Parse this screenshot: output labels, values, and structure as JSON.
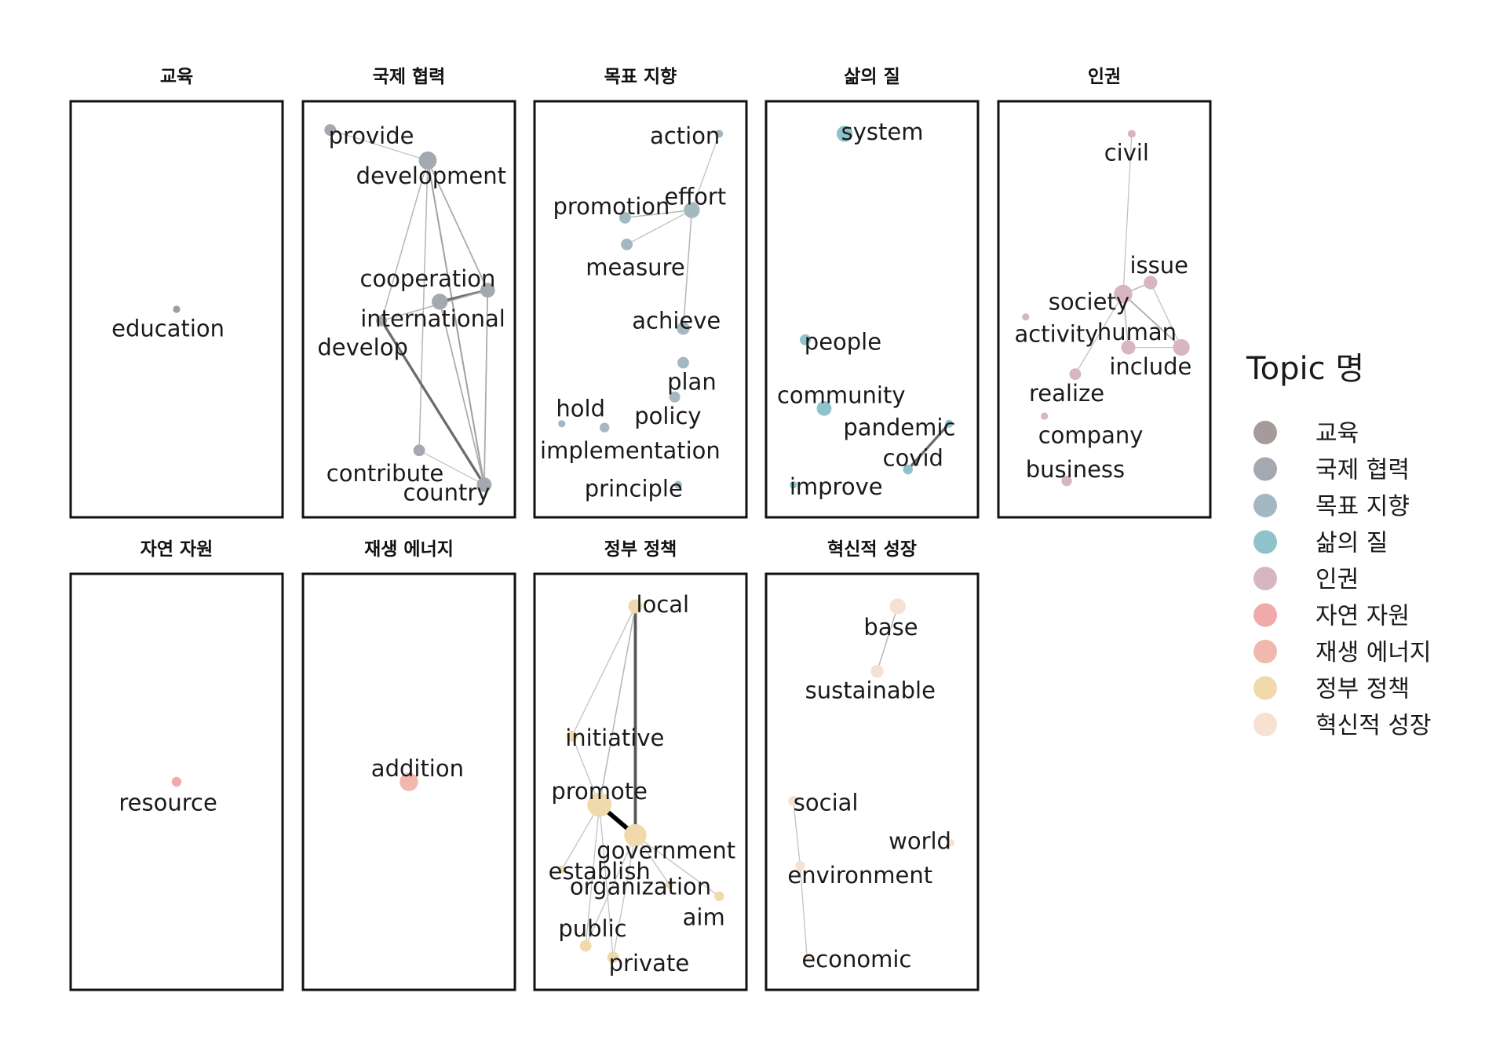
{
  "chart_data": {
    "type": "network",
    "x_range": [
      0,
      1
    ],
    "y_range": [
      0,
      1
    ],
    "legend": {
      "title": "Topic 명",
      "position": "right",
      "entries": [
        {
          "label": "교육",
          "color": "#a49b9a"
        },
        {
          "label": "국제 협력",
          "color": "#a4a8b0"
        },
        {
          "label": "목표 지향",
          "color": "#a4b8c2"
        },
        {
          "label": "삶의 질",
          "color": "#8ec3cb"
        },
        {
          "label": "인권",
          "color": "#d7b6c0"
        },
        {
          "label": "자연 자원",
          "color": "#f0aaaa"
        },
        {
          "label": "재생 에너지",
          "color": "#f1b8ae"
        },
        {
          "label": "정부 정책",
          "color": "#f0d9ab"
        },
        {
          "label": "혁신적 성장",
          "color": "#f6e1d3"
        }
      ]
    },
    "panels": [
      {
        "title": "교육",
        "color": "#a49b9a",
        "nodes": [
          {
            "word": "education",
            "x": 0.5,
            "y": 0.5,
            "size": 0.6,
            "label_at": [
              0.45,
              0.45
            ]
          }
        ],
        "edges": []
      },
      {
        "title": "국제 협력",
        "color": "#a4a8b0",
        "nodes": [
          {
            "word": "provide",
            "x": 0.04,
            "y": 0.97,
            "size": 1.3,
            "label_at": [
              0.28,
              0.955
            ]
          },
          {
            "word": "development",
            "x": 0.61,
            "y": 0.89,
            "size": 2.3,
            "label_at": [
              0.63,
              0.85
            ]
          },
          {
            "word": "cooperation",
            "x": 0.68,
            "y": 0.52,
            "size": 2.0,
            "label_at": [
              0.61,
              0.58
            ]
          },
          {
            "word": "international",
            "x": 0.96,
            "y": 0.55,
            "size": 1.8,
            "label_at": [
              0.64,
              0.475
            ]
          },
          {
            "word": "develop",
            "x": 0.34,
            "y": 0.47,
            "size": 1.2,
            "label_at": [
              0.23,
              0.4
            ]
          },
          {
            "word": "contribute",
            "x": 0.56,
            "y": 0.13,
            "size": 1.3,
            "label_at": [
              0.36,
              0.07
            ]
          },
          {
            "word": "country",
            "x": 0.94,
            "y": 0.04,
            "size": 1.8,
            "label_at": [
              0.72,
              0.02
            ]
          }
        ],
        "edges": [
          {
            "source": "development",
            "target": "country",
            "weight": 0.25
          },
          {
            "source": "development",
            "target": "international",
            "weight": 0.2
          },
          {
            "source": "development",
            "target": "contribute",
            "weight": 0.15
          },
          {
            "source": "development",
            "target": "develop",
            "weight": 0.15
          },
          {
            "source": "development",
            "target": "provide",
            "weight": 0.1
          },
          {
            "source": "cooperation",
            "target": "international",
            "weight": 0.5
          },
          {
            "source": "cooperation",
            "target": "country",
            "weight": 0.2
          },
          {
            "source": "international",
            "target": "country",
            "weight": 0.2
          },
          {
            "source": "international",
            "target": "develop",
            "weight": 0.15
          },
          {
            "source": "develop",
            "target": "country",
            "weight": 0.5
          },
          {
            "source": "contribute",
            "target": "country",
            "weight": 0.1
          }
        ]
      },
      {
        "title": "목표 지향",
        "color": "#a4b8c2",
        "nodes": [
          {
            "word": "action",
            "x": 0.96,
            "y": 0.96,
            "size": 0.7,
            "label_at": [
              0.76,
              0.955
            ]
          },
          {
            "word": "effort",
            "x": 0.8,
            "y": 0.76,
            "size": 2.0,
            "label_at": [
              0.82,
              0.795
            ]
          },
          {
            "word": "promotion",
            "x": 0.41,
            "y": 0.74,
            "size": 1.3,
            "label_at": [
              0.33,
              0.77
            ]
          },
          {
            "word": "measure",
            "x": 0.42,
            "y": 0.67,
            "size": 1.3,
            "label_at": [
              0.47,
              0.61
            ]
          },
          {
            "word": "achieve",
            "x": 0.75,
            "y": 0.45,
            "size": 1.5,
            "label_at": [
              0.71,
              0.47
            ]
          },
          {
            "word": "plan",
            "x": 0.75,
            "y": 0.36,
            "size": 1.3,
            "label_at": [
              0.8,
              0.31
            ]
          },
          {
            "word": "policy",
            "x": 0.7,
            "y": 0.27,
            "size": 1.2,
            "label_at": [
              0.66,
              0.22
            ]
          },
          {
            "word": "hold",
            "x": 0.04,
            "y": 0.2,
            "size": 0.6,
            "label_at": [
              0.15,
              0.24
            ]
          },
          {
            "word": "implementation",
            "x": 0.29,
            "y": 0.19,
            "size": 1.0,
            "label_at": [
              0.44,
              0.13
            ]
          },
          {
            "word": "principle",
            "x": 0.72,
            "y": 0.04,
            "size": 0.7,
            "label_at": [
              0.46,
              0.03
            ]
          }
        ],
        "edges": [
          {
            "source": "action",
            "target": "effort",
            "weight": 0.1
          },
          {
            "source": "effort",
            "target": "promotion",
            "weight": 0.15
          },
          {
            "source": "effort",
            "target": "measure",
            "weight": 0.1
          },
          {
            "source": "effort",
            "target": "achieve",
            "weight": 0.15
          }
        ]
      },
      {
        "title": "삶의 질",
        "color": "#8ec3cb",
        "nodes": [
          {
            "word": "system",
            "x": 0.34,
            "y": 0.96,
            "size": 2.0,
            "label_at": [
              0.56,
              0.965
            ]
          },
          {
            "word": "people",
            "x": 0.11,
            "y": 0.42,
            "size": 1.2,
            "label_at": [
              0.33,
              0.415
            ]
          },
          {
            "word": "community",
            "x": 0.22,
            "y": 0.24,
            "size": 1.8,
            "label_at": [
              0.32,
              0.275
            ]
          },
          {
            "word": "pandemic",
            "x": 0.95,
            "y": 0.2,
            "size": 0.7,
            "label_at": [
              0.66,
              0.19
            ]
          },
          {
            "word": "covid",
            "x": 0.71,
            "y": 0.08,
            "size": 1.0,
            "label_at": [
              0.74,
              0.11
            ]
          },
          {
            "word": "improve",
            "x": 0.04,
            "y": 0.04,
            "size": 0.6,
            "label_at": [
              0.29,
              0.035
            ]
          }
        ],
        "edges": [
          {
            "source": "pandemic",
            "target": "covid",
            "weight": 0.5
          }
        ]
      },
      {
        "title": "인권",
        "color": "#d7b6c0",
        "nodes": [
          {
            "word": "civil",
            "x": 0.66,
            "y": 0.96,
            "size": 0.7,
            "label_at": [
              0.63,
              0.91
            ]
          },
          {
            "word": "issue",
            "x": 0.77,
            "y": 0.57,
            "size": 1.6,
            "label_at": [
              0.82,
              0.615
            ]
          },
          {
            "word": "society",
            "x": 0.61,
            "y": 0.54,
            "size": 2.4,
            "label_at": [
              0.41,
              0.52
            ]
          },
          {
            "word": "activity",
            "x": 0.04,
            "y": 0.48,
            "size": 0.6,
            "label_at": [
              0.22,
              0.435
            ]
          },
          {
            "word": "human",
            "x": 0.64,
            "y": 0.4,
            "size": 1.7,
            "label_at": [
              0.69,
              0.44
            ]
          },
          {
            "word": "include",
            "x": 0.95,
            "y": 0.4,
            "size": 2.1,
            "label_at": [
              0.77,
              0.35
            ]
          },
          {
            "word": "realize",
            "x": 0.33,
            "y": 0.33,
            "size": 1.3,
            "label_at": [
              0.28,
              0.28
            ]
          },
          {
            "word": "company",
            "x": 0.15,
            "y": 0.22,
            "size": 0.6,
            "label_at": [
              0.42,
              0.17
            ]
          },
          {
            "word": "business",
            "x": 0.28,
            "y": 0.05,
            "size": 1.1,
            "label_at": [
              0.33,
              0.08
            ]
          }
        ],
        "edges": [
          {
            "source": "civil",
            "target": "society",
            "weight": 0.1
          },
          {
            "source": "society",
            "target": "issue",
            "weight": 0.15
          },
          {
            "source": "society",
            "target": "include",
            "weight": 0.2
          },
          {
            "source": "society",
            "target": "human",
            "weight": 0.15
          },
          {
            "source": "society",
            "target": "realize",
            "weight": 0.1
          },
          {
            "source": "issue",
            "target": "include",
            "weight": 0.1
          },
          {
            "source": "human",
            "target": "include",
            "weight": 0.1
          }
        ]
      },
      {
        "title": "자연 자원",
        "color": "#f0aaaa",
        "nodes": [
          {
            "word": "resource",
            "x": 0.5,
            "y": 0.5,
            "size": 1.0,
            "label_at": [
              0.45,
              0.445
            ]
          }
        ],
        "edges": []
      },
      {
        "title": "재생 에너지",
        "color": "#f1b8ae",
        "nodes": [
          {
            "word": "addition",
            "x": 0.5,
            "y": 0.5,
            "size": 2.4,
            "label_at": [
              0.55,
              0.535
            ]
          }
        ],
        "edges": []
      },
      {
        "title": "정부 정책",
        "color": "#f0d9ab",
        "nodes": [
          {
            "word": "local",
            "x": 0.47,
            "y": 0.96,
            "size": 1.7,
            "label_at": [
              0.63,
              0.965
            ]
          },
          {
            "word": "initiative",
            "x": 0.1,
            "y": 0.62,
            "size": 1.2,
            "label_at": [
              0.35,
              0.615
            ]
          },
          {
            "word": "promote",
            "x": 0.26,
            "y": 0.44,
            "size": 3.3,
            "label_at": [
              0.26,
              0.475
            ]
          },
          {
            "word": "government",
            "x": 0.47,
            "y": 0.36,
            "size": 3.0,
            "label_at": [
              0.65,
              0.32
            ]
          },
          {
            "word": "establish",
            "x": 0.04,
            "y": 0.27,
            "size": 0.6,
            "label_at": [
              0.26,
              0.265
            ]
          },
          {
            "word": "organization",
            "x": 0.67,
            "y": 0.23,
            "size": 0.7,
            "label_at": [
              0.5,
              0.225
            ]
          },
          {
            "word": "aim",
            "x": 0.96,
            "y": 0.2,
            "size": 1.0,
            "label_at": [
              0.87,
              0.145
            ]
          },
          {
            "word": "public",
            "x": 0.18,
            "y": 0.07,
            "size": 1.3,
            "label_at": [
              0.22,
              0.115
            ]
          },
          {
            "word": "private",
            "x": 0.34,
            "y": 0.04,
            "size": 1.3,
            "label_at": [
              0.55,
              0.025
            ]
          }
        ],
        "edges": [
          {
            "source": "local",
            "target": "government",
            "weight": 0.6
          },
          {
            "source": "local",
            "target": "promote",
            "weight": 0.15
          },
          {
            "source": "local",
            "target": "initiative",
            "weight": 0.1
          },
          {
            "source": "promote",
            "target": "government",
            "weight": 1.0
          },
          {
            "source": "promote",
            "target": "initiative",
            "weight": 0.1
          },
          {
            "source": "promote",
            "target": "establish",
            "weight": 0.1
          },
          {
            "source": "promote",
            "target": "public",
            "weight": 0.1
          },
          {
            "source": "promote",
            "target": "private",
            "weight": 0.1
          },
          {
            "source": "government",
            "target": "aim",
            "weight": 0.1
          },
          {
            "source": "government",
            "target": "organization",
            "weight": 0.1
          },
          {
            "source": "government",
            "target": "public",
            "weight": 0.1
          },
          {
            "source": "government",
            "target": "private",
            "weight": 0.1
          }
        ]
      },
      {
        "title": "혁신적 성장",
        "color": "#f6e1d3",
        "nodes": [
          {
            "word": "base",
            "x": 0.65,
            "y": 0.96,
            "size": 2.0,
            "label_at": [
              0.61,
              0.905
            ]
          },
          {
            "word": "sustainable",
            "x": 0.53,
            "y": 0.79,
            "size": 1.5,
            "label_at": [
              0.49,
              0.74
            ]
          },
          {
            "word": "social",
            "x": 0.04,
            "y": 0.45,
            "size": 1.1,
            "label_at": [
              0.23,
              0.445
            ]
          },
          {
            "word": "world",
            "x": 0.96,
            "y": 0.34,
            "size": 0.6,
            "label_at": [
              0.78,
              0.345
            ]
          },
          {
            "word": "environment",
            "x": 0.08,
            "y": 0.28,
            "size": 1.0,
            "label_at": [
              0.43,
              0.255
            ]
          },
          {
            "word": "economic",
            "x": 0.12,
            "y": 0.04,
            "size": 0.6,
            "label_at": [
              0.41,
              0.035
            ]
          }
        ],
        "edges": [
          {
            "source": "base",
            "target": "sustainable",
            "weight": 0.15
          },
          {
            "source": "social",
            "target": "environment",
            "weight": 0.1
          },
          {
            "source": "environment",
            "target": "economic",
            "weight": 0.1
          }
        ]
      }
    ]
  }
}
